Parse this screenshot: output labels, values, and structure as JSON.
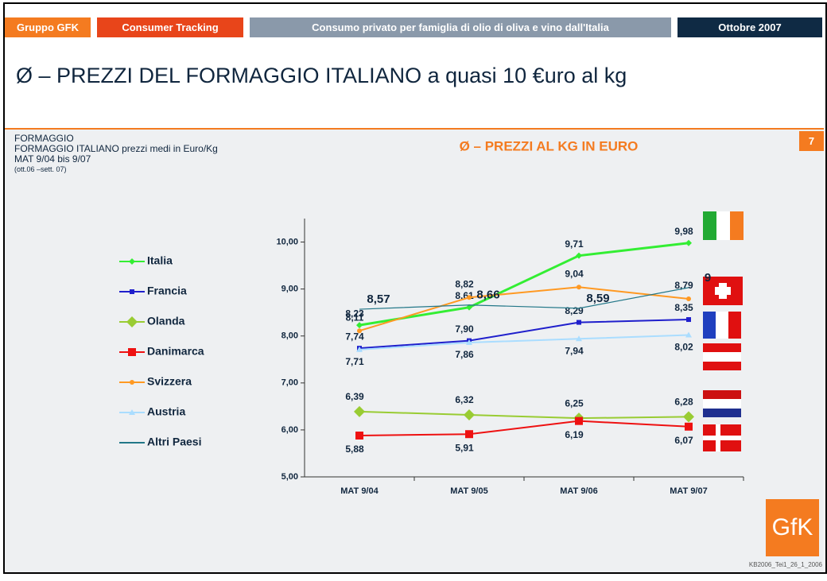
{
  "header": {
    "tabs": [
      "Gruppo GFK",
      "Consumer Tracking",
      "Consumo privato per famiglia di olio di oliva e vino dall'Italia",
      "Ottobre 2007"
    ]
  },
  "slide_title": "Ø – PREZZI DEL FORMAGGIO ITALIANO a quasi 10 €uro al kg",
  "page_number": "7",
  "notes": [
    "FORMAGGIO",
    "FORMAGGIO ITALIANO prezzi medi in Euro/Kg",
    "MAT 9/04 bis 9/07",
    "(ott.06 –sett. 07)"
  ],
  "logo": "GfK",
  "footer": "KB2006_Tei1_26_1_2006",
  "chart_data": {
    "type": "line",
    "title": "Ø – PREZZI AL KG IN EURO",
    "categories": [
      "MAT 9/04",
      "MAT 9/05",
      "MAT 9/06",
      "MAT 9/07"
    ],
    "ylim": [
      5,
      10.5
    ],
    "yticks": [
      {
        "value": 5,
        "label": "5,00"
      },
      {
        "value": 6,
        "label": "6,00"
      },
      {
        "value": 7,
        "label": "7,00"
      },
      {
        "value": 8,
        "label": "8,00"
      },
      {
        "value": 9,
        "label": "9,00"
      },
      {
        "value": 10,
        "label": "10,00"
      }
    ],
    "series": [
      {
        "name": "Italia",
        "color": "#33ee33",
        "marker": "diamond",
        "values": [
          8.23,
          8.61,
          9.71,
          9.98
        ],
        "value_labels": [
          "8,23",
          "8,61",
          "9,71",
          "9,98"
        ]
      },
      {
        "name": "Francia",
        "color": "#1f1fcc",
        "marker": "square",
        "values": [
          7.74,
          7.9,
          8.29,
          8.35
        ],
        "value_labels": [
          "7,74",
          "7,90",
          "8,29",
          "8,35"
        ]
      },
      {
        "name": "Olanda",
        "color": "#99cc33",
        "marker": "bigdiamond",
        "values": [
          6.39,
          6.32,
          6.25,
          6.28
        ],
        "value_labels": [
          "6,39",
          "6,32",
          "6,25",
          "6,28"
        ]
      },
      {
        "name": "Danimarca",
        "color": "#ee1111",
        "marker": "bigsquare",
        "values": [
          5.88,
          5.91,
          6.19,
          6.07
        ],
        "value_labels": [
          "5,88",
          "5,91",
          "6,19",
          "6,07"
        ]
      },
      {
        "name": "Svizzera",
        "color": "#ff9922",
        "marker": "circle",
        "values": [
          8.11,
          8.82,
          9.04,
          8.79
        ],
        "value_labels": [
          "8,11",
          "8,82",
          "9,04",
          "8,79"
        ]
      },
      {
        "name": "Austria",
        "color": "#aaddff",
        "marker": "triangle",
        "values": [
          7.71,
          7.86,
          7.94,
          8.02
        ],
        "value_labels": [
          "7,71",
          "7,86",
          "7,94",
          "8,02"
        ]
      },
      {
        "name": "Altri Paesi",
        "color": "#227788",
        "marker": "none",
        "values": [
          8.57,
          8.66,
          8.59,
          9.03
        ],
        "value_labels": [
          "8,57",
          "8,66",
          "8,59",
          "9"
        ]
      }
    ]
  }
}
